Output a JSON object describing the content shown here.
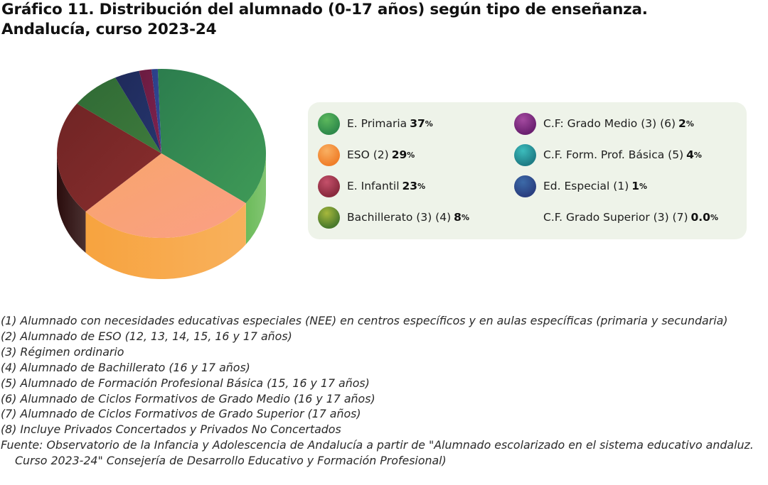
{
  "title": {
    "line1": "Gráfico 11. Distribución del alumnado (0-17 años) según tipo de enseñanza.",
    "line2": "Andalucía, curso 2023-24"
  },
  "chart_data": {
    "type": "pie",
    "title": "Gráfico 11. Distribución del alumnado (0-17 años) según tipo de enseñanza. Andalucía, curso 2023-24",
    "unit": "%",
    "slices": [
      {
        "label": "E. Primaria",
        "value_text": "37",
        "value": 37,
        "color": "#2f8a4b",
        "top": "#2c7d4e",
        "top_light": "#3f9a57",
        "side": "#6cbb5a"
      },
      {
        "label": "ESO (2)",
        "value_text": "29",
        "value": 29,
        "color": "#f59a3c",
        "top": "#f8a56b",
        "top_light": "#fa9f85",
        "side": "#f7a33f"
      },
      {
        "label": "E. Infantil",
        "value_text": "23",
        "value": 23,
        "color": "#a63a4d",
        "top": "#6f2424",
        "top_light": "#8a2e2e",
        "side": "#2a0c0c"
      },
      {
        "label": "Bachillerato (3) (4)",
        "value_text": "8",
        "value": 8,
        "color": "#7fa33a",
        "top": "#2f6a35",
        "top_light": "#3e7a3c",
        "side": "#2a4f28"
      },
      {
        "label": "C.F. Form. Prof. Básica (5)",
        "value_text": "4",
        "value": 4,
        "color": "#2ea3a8",
        "top": "#1f2a5a",
        "top_light": "#25356d",
        "side": "#1a2148"
      },
      {
        "label": "C.F: Grado Medio (3) (6)",
        "value_text": "2",
        "value": 2,
        "color": "#8d3a8a",
        "top": "#6a1b40",
        "top_light": "#7e2350",
        "side": "#4e1430"
      },
      {
        "label": "Ed. Especial (1)",
        "value_text": "1",
        "value": 1,
        "color": "#2e5c9a",
        "top": "#2a3f86",
        "top_light": "#33499a",
        "side": "#203070"
      },
      {
        "label": "C.F. Grado Superior (3) (7)",
        "value_text": "0.0",
        "value": 0.0,
        "color": "#eef3e9",
        "top": "#eef3e9",
        "top_light": "#eef3e9",
        "side": "#eef3e9"
      }
    ]
  },
  "legend": {
    "unit": "%",
    "left_column": [
      {
        "label": "E. Primaria",
        "value": "37",
        "color": "#2f8a4b",
        "color_light": "#5cb85c"
      },
      {
        "label": "ESO (2)",
        "value": "29",
        "color": "#f07f2a",
        "color_light": "#f9b062"
      },
      {
        "label": "E. Infantil",
        "value": "23",
        "color": "#8a2a3e",
        "color_light": "#c4506a"
      },
      {
        "label": "Bachillerato (3) (4)",
        "value": "8",
        "color": "#4a7a2c",
        "color_light": "#a7b83c"
      }
    ],
    "right_column": [
      {
        "label": "C.F: Grado Medio (3) (6)",
        "value": "2",
        "color": "#6b2070",
        "color_light": "#a44aa0"
      },
      {
        "label": "C.F. Form. Prof. Básica (5)",
        "value": "4",
        "color": "#1f7d86",
        "color_light": "#3cbcbc"
      },
      {
        "label": "Ed. Especial (1)",
        "value": "1",
        "color": "#2a3f80",
        "color_light": "#3c6aa8"
      },
      {
        "label": "C.F. Grado Superior (3) (7)",
        "value": "0.0",
        "color": "",
        "color_light": ""
      }
    ]
  },
  "notes": [
    "(1) Alumnado con necesidades educativas especiales (NEE) en centros específicos y en aulas específicas (primaria y secundaria)",
    "(2) Alumnado de ESO (12, 13, 14, 15, 16 y 17 años)",
    "(3) Régimen ordinario",
    "(4) Alumnado de Bachillerato (16 y 17 años)",
    "(5) Alumnado de Formación Profesional Básica (15, 16 y 17 años)",
    "(6) Alumnado de Ciclos Formativos de Grado Medio (16 y 17 años)",
    "(7) Alumnado de Ciclos Formativos de Grado Superior (17 años)",
    "(8) Incluye Privados Concertados y Privados No Concertados",
    "Fuente: Observatorio de la Infancia y Adolescencia de Andalucía a partir de \"Alumnado escolarizado en el sistema educativo andaluz. Curso 2023-24\" Consejería de Desarrollo Educativo y Formación Profesional)"
  ]
}
